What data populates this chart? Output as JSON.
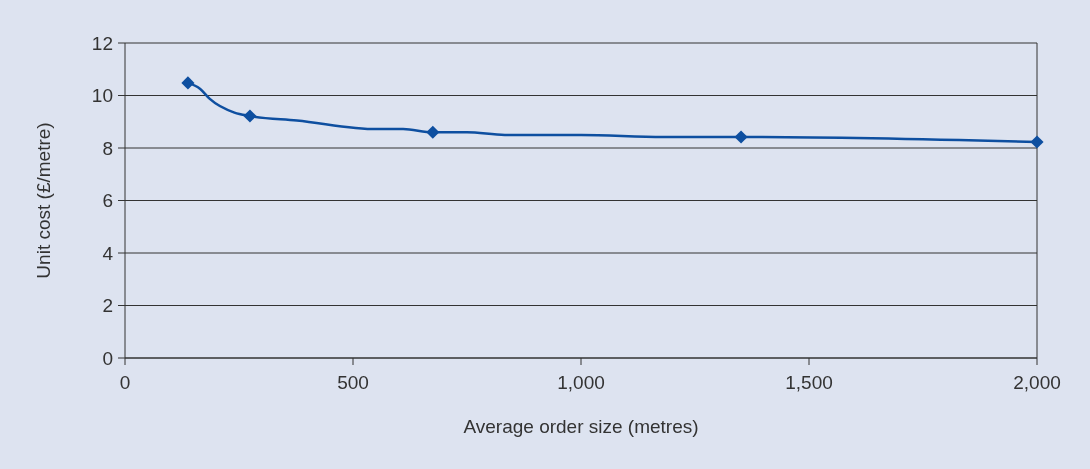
{
  "chart_data": {
    "type": "line",
    "xlabel": "Average order size (metres)",
    "ylabel": "Unit cost (£/metre)",
    "xlim": [
      0,
      2000
    ],
    "xticks": [
      0,
      500,
      {
        "value": 1000,
        "label": "1,000"
      },
      {
        "value": 1500,
        "label": "1,500"
      },
      {
        "value": 2000,
        "label": "2,000"
      }
    ],
    "ylim": [
      0,
      12
    ],
    "yticks": [
      0,
      2,
      4,
      6,
      8,
      10,
      12
    ],
    "grid": "y",
    "series": [
      {
        "marker": "none",
        "color": "#0e4fa0",
        "x": [
          138,
          165,
          186,
          240,
          274,
          377,
          553,
          610,
          675,
          750,
          833,
          1000,
          1180,
          1351,
          2000
        ],
        "values": [
          10.48,
          10.25,
          9.87,
          9.35,
          9.22,
          9.05,
          8.72,
          8.72,
          8.6,
          8.6,
          8.5,
          8.5,
          8.42,
          8.42,
          8.23
        ]
      },
      {
        "type": "scatter",
        "marker": "diamond",
        "color": "#0e4fa0",
        "x": [
          138,
          274,
          675,
          1351,
          2000
        ],
        "values": [
          10.48,
          9.22,
          8.6,
          8.42,
          8.23
        ]
      }
    ]
  }
}
